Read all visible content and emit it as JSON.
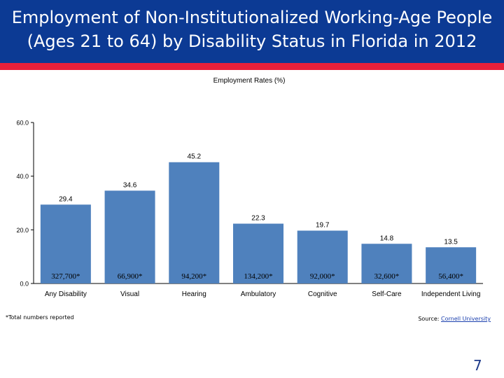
{
  "slide": {
    "title_line1": "Employment of Non-Institutionalized Working-Age People",
    "title_line2": "(Ages 21 to 64) by Disability Status in Florida in 2012",
    "footnote": "*Total numbers reported",
    "source_label": "Source:",
    "source_link": "Cornell University",
    "page_number": "7"
  },
  "chart_data": {
    "type": "bar",
    "title": "Employment Rates (%)",
    "categories": [
      "Any Disability",
      "Visual",
      "Hearing",
      "Ambulatory",
      "Cognitive",
      "Self-Care",
      "Independent Living"
    ],
    "values": [
      29.4,
      34.6,
      45.2,
      22.3,
      19.7,
      14.8,
      13.5
    ],
    "value_labels": [
      "29.4",
      "34.6",
      "45.2",
      "22.3",
      "19.7",
      "14.8",
      "13.5"
    ],
    "counts": [
      "327,700*",
      "66,900*",
      "94,200*",
      "134,200*",
      "92,000*",
      "32,600*",
      "56,400*"
    ],
    "ylim": [
      0,
      60
    ],
    "yticks": [
      "0.0",
      "20.0",
      "40.0",
      "60.0"
    ],
    "bar_color": "#4f81bd",
    "grid": false
  }
}
